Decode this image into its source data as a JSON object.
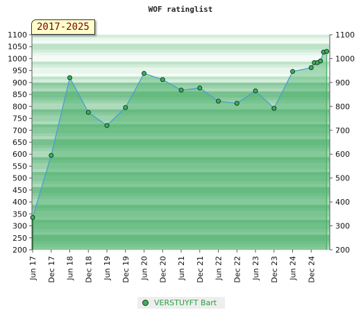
{
  "chart_data": {
    "type": "area",
    "title": "WOF ratinglist",
    "badge": "2017-2025",
    "ylim": [
      200,
      1100
    ],
    "y_ticks": [
      200,
      250,
      300,
      350,
      400,
      450,
      500,
      550,
      600,
      650,
      700,
      750,
      800,
      850,
      900,
      950,
      1000,
      1050,
      1100
    ],
    "y_ticks_right": [
      200,
      300,
      400,
      500,
      600,
      700,
      800,
      900,
      1000,
      1100
    ],
    "x_ticks": [
      "Jun 17",
      "Dec 17",
      "Jun 18",
      "Dec 18",
      "Jun 19",
      "Dec 19",
      "Jun 20",
      "Dec 20",
      "Jun 21",
      "Dec 21",
      "Jun 22",
      "Dec 22",
      "Jun 23",
      "Dec 23",
      "Jun 24",
      "Dec 24"
    ],
    "series": [
      {
        "name": "VERSTUYFT Bart",
        "color": "#4a9fd0",
        "marker_color": "#3fae5a",
        "points": [
          {
            "x": "2017-06",
            "y": 335
          },
          {
            "x": "2017-12",
            "y": 595
          },
          {
            "x": "2018-06",
            "y": 920
          },
          {
            "x": "2018-12",
            "y": 775
          },
          {
            "x": "2019-06",
            "y": 720
          },
          {
            "x": "2019-12",
            "y": 795
          },
          {
            "x": "2020-06",
            "y": 938
          },
          {
            "x": "2020-12",
            "y": 912
          },
          {
            "x": "2021-06",
            "y": 868
          },
          {
            "x": "2021-12",
            "y": 877
          },
          {
            "x": "2022-06",
            "y": 822
          },
          {
            "x": "2022-12",
            "y": 813
          },
          {
            "x": "2023-06",
            "y": 865
          },
          {
            "x": "2023-12",
            "y": 792
          },
          {
            "x": "2024-06",
            "y": 946
          },
          {
            "x": "2024-12",
            "y": 962
          },
          {
            "x": "2025-01",
            "y": 983
          },
          {
            "x": "2025-02",
            "y": 983
          },
          {
            "x": "2025-03",
            "y": 990
          },
          {
            "x": "2025-04",
            "y": 1027
          },
          {
            "x": "2025-05",
            "y": 1030
          }
        ]
      }
    ],
    "legend": {
      "position": "bottom-center"
    },
    "grid": true
  }
}
